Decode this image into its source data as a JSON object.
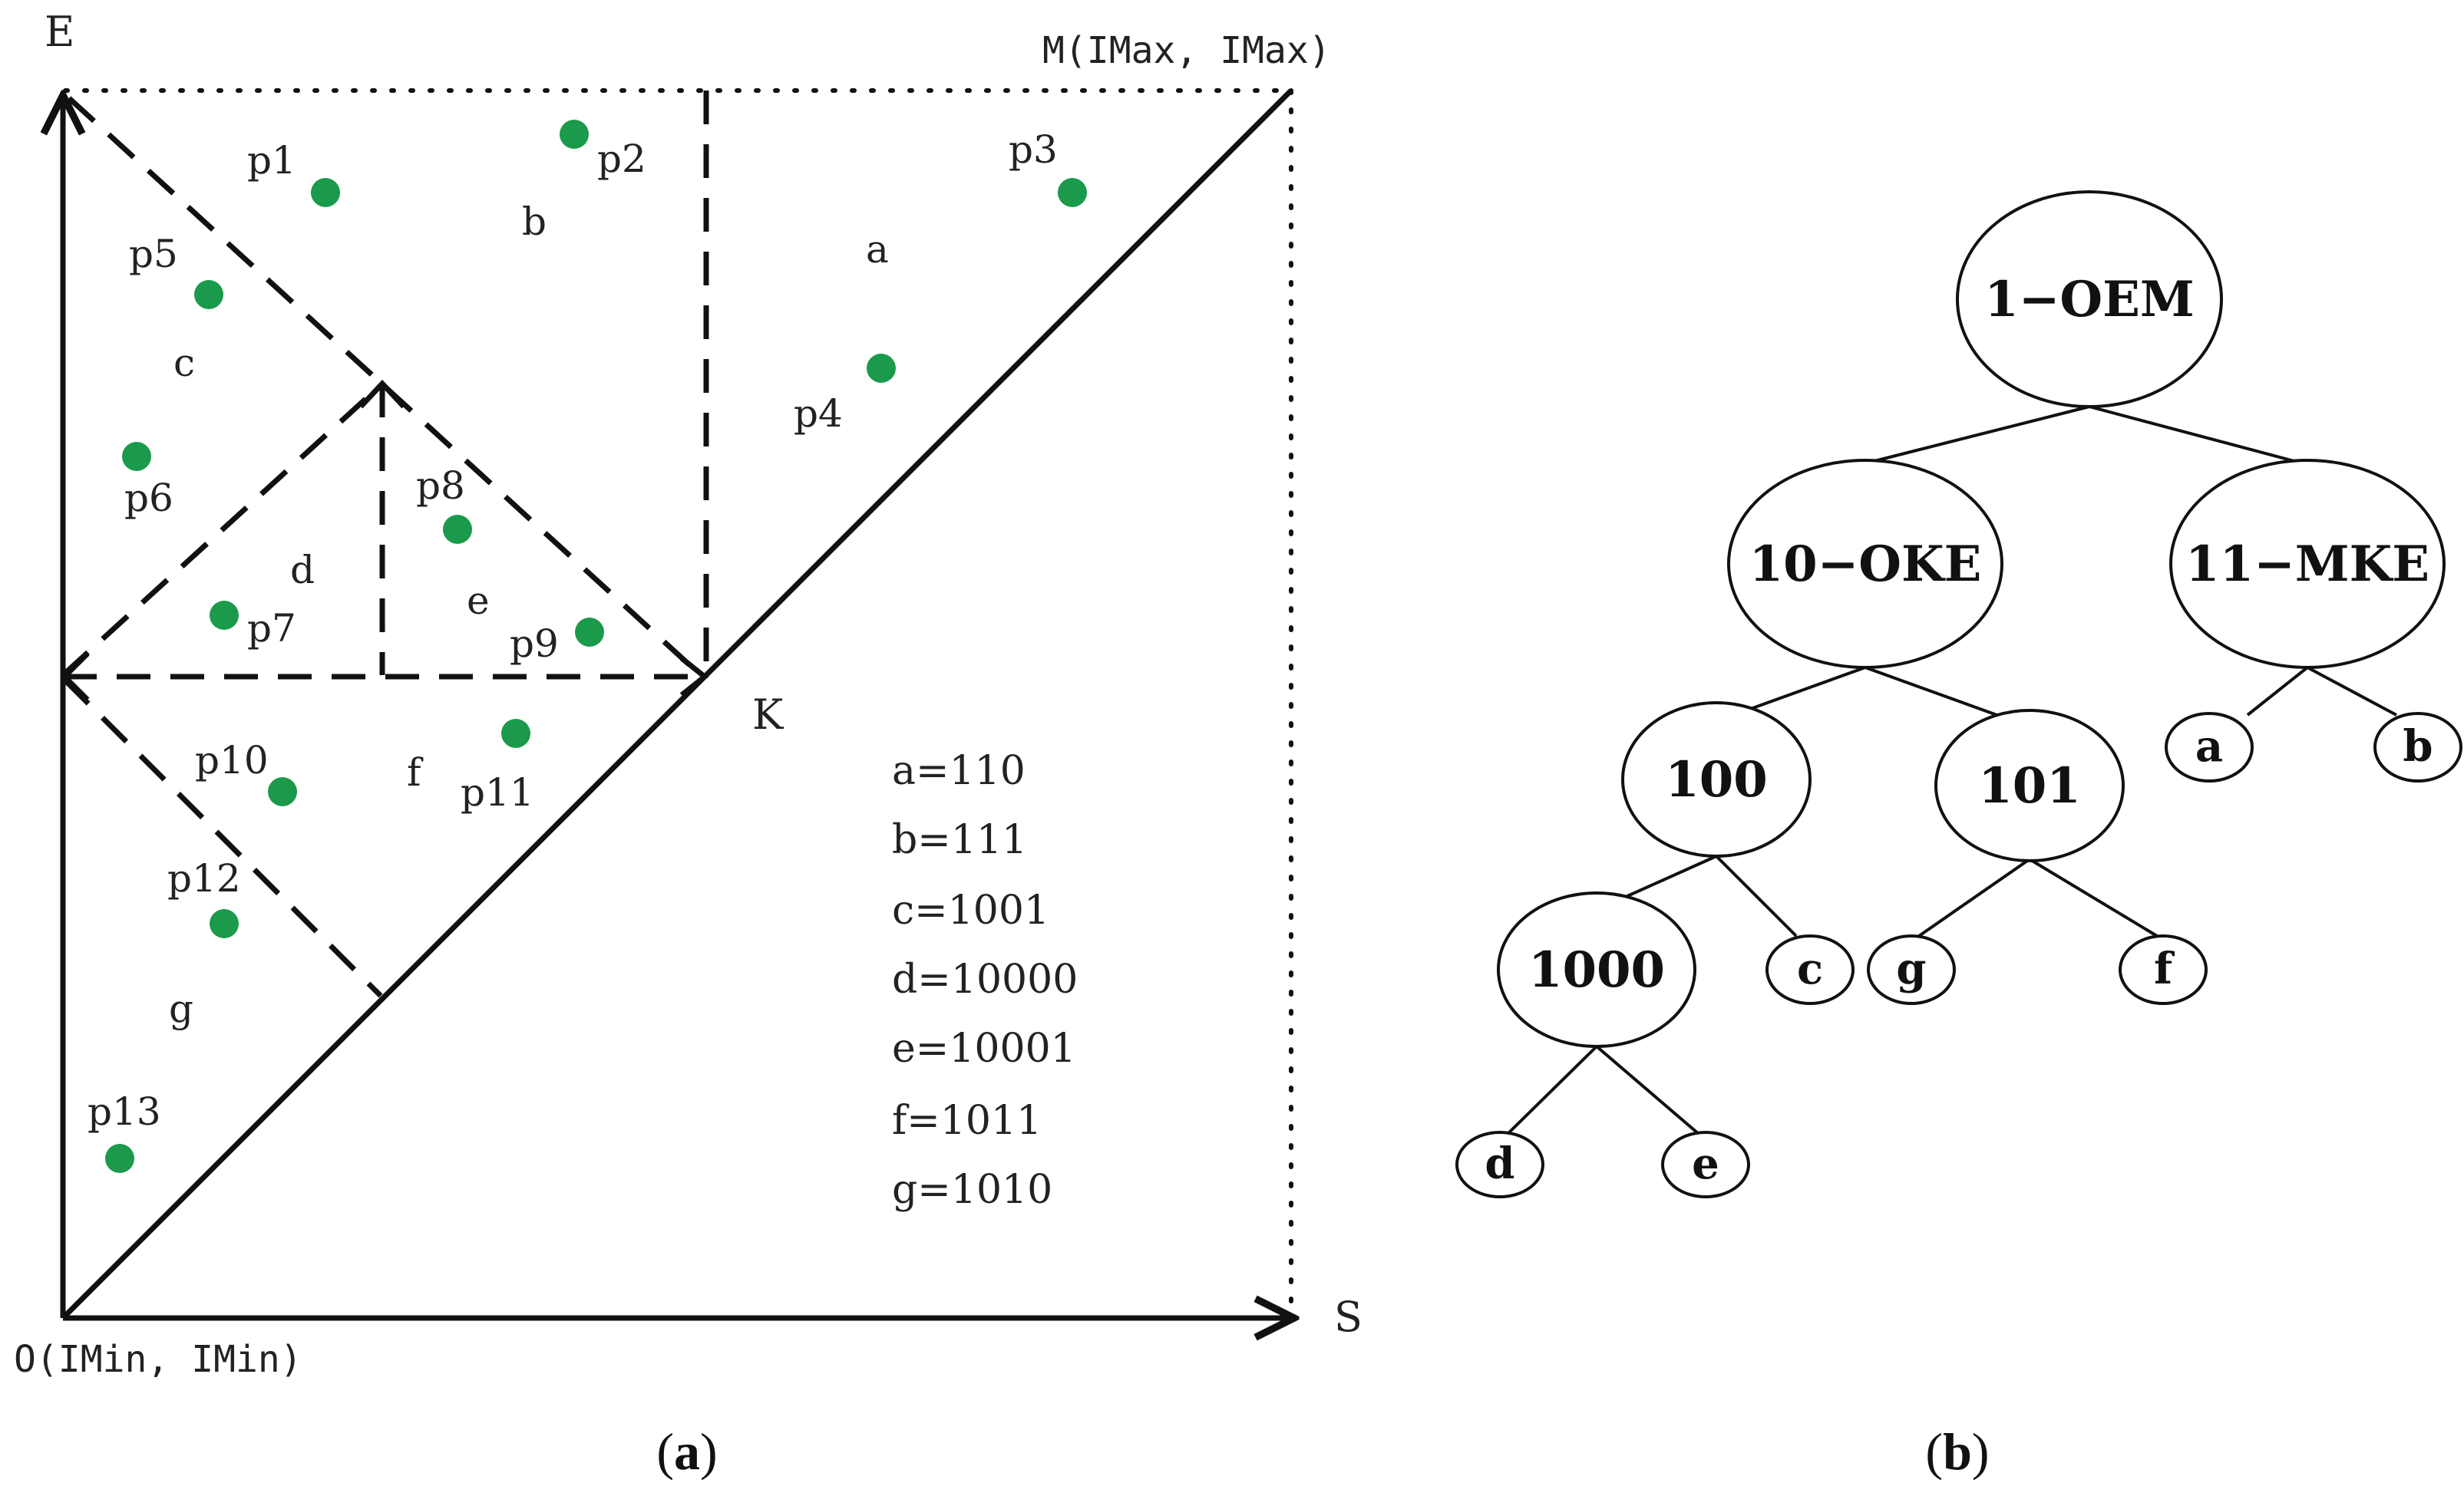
{
  "panel_a": {
    "axis_e": "E",
    "axis_s": "S",
    "corner_m": "M(IMax, IMax)",
    "corner_o": "O(IMin, IMin)",
    "point_k": "K",
    "regions": {
      "a": "a",
      "b": "b",
      "c": "c",
      "d": "d",
      "e": "e",
      "f": "f",
      "g": "g"
    },
    "points": [
      "p1",
      "p2",
      "p3",
      "p4",
      "p5",
      "p6",
      "p7",
      "p8",
      "p9",
      "p10",
      "p11",
      "p12",
      "p13"
    ],
    "point_color": "#1a9a4a",
    "codes": [
      "a=110",
      "b=111",
      "c=1001",
      "d=10000",
      "e=10001",
      "f=1011",
      "g=1010"
    ],
    "caption_open": "(",
    "caption_letter": "a",
    "caption_close": ")"
  },
  "panel_b": {
    "root": "1−OEM",
    "left": "10−OKE",
    "right": "11−MKE",
    "n100": "100",
    "n101": "101",
    "n1000": "1000",
    "leaves": {
      "a": "a",
      "b": "b",
      "c": "c",
      "d": "d",
      "e": "e",
      "f": "f",
      "g": "g"
    },
    "caption_open": "(",
    "caption_letter": "b",
    "caption_close": ")"
  }
}
